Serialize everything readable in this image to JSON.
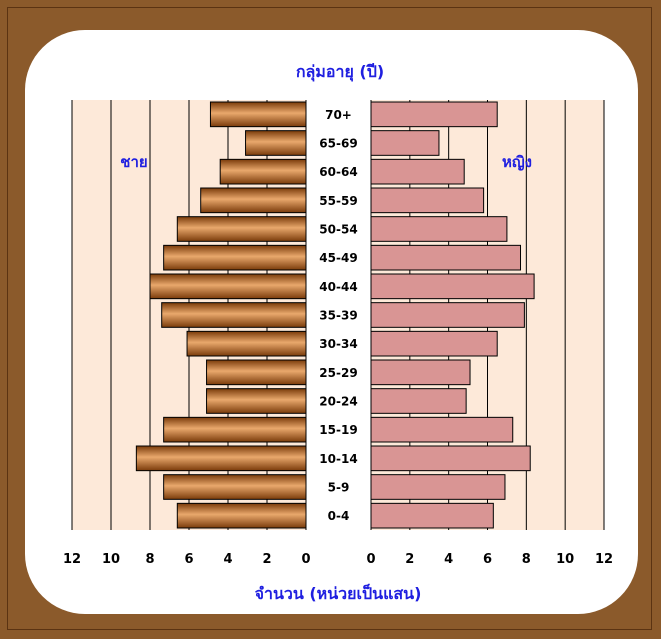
{
  "colors": {
    "frame": "#8b5a2b",
    "panel_bg": "#fde9d9",
    "male_fill_light": "#e6a266",
    "male_fill_dark": "#7a3b0a",
    "female_fill": "#d99594",
    "label_blue": "#1f1fe0"
  },
  "chart_data": {
    "type": "bar",
    "orientation": "horizontal",
    "subtype": "population-pyramid",
    "title": "กลุ่มอายุ (ปี)",
    "xlabel": "จำนวน (หน่วยเป็นแสน)",
    "ylabel": "",
    "xlim": [
      0,
      12
    ],
    "xticks": [
      "12",
      "10",
      "8",
      "6",
      "4",
      "2",
      "0"
    ],
    "xticks_right": [
      "0",
      "2",
      "4",
      "6",
      "8",
      "10",
      "12"
    ],
    "grid": true,
    "categories": [
      "70+",
      "65-69",
      "60-64",
      "55-59",
      "50-54",
      "45-49",
      "40-44",
      "35-39",
      "30-34",
      "25-29",
      "20-24",
      "15-19",
      "10-14",
      "5-9",
      "0-4"
    ],
    "series": [
      {
        "name": "ชาย",
        "side": "left",
        "values": [
          4.9,
          3.1,
          4.4,
          5.4,
          6.6,
          7.3,
          8.0,
          7.4,
          6.1,
          5.1,
          5.1,
          7.3,
          8.7,
          7.3,
          6.6
        ]
      },
      {
        "name": "หญิง",
        "side": "right",
        "values": [
          6.5,
          3.5,
          4.8,
          5.8,
          7.0,
          7.7,
          8.4,
          7.9,
          6.5,
          5.1,
          4.9,
          7.3,
          8.2,
          6.9,
          6.3
        ]
      }
    ]
  }
}
